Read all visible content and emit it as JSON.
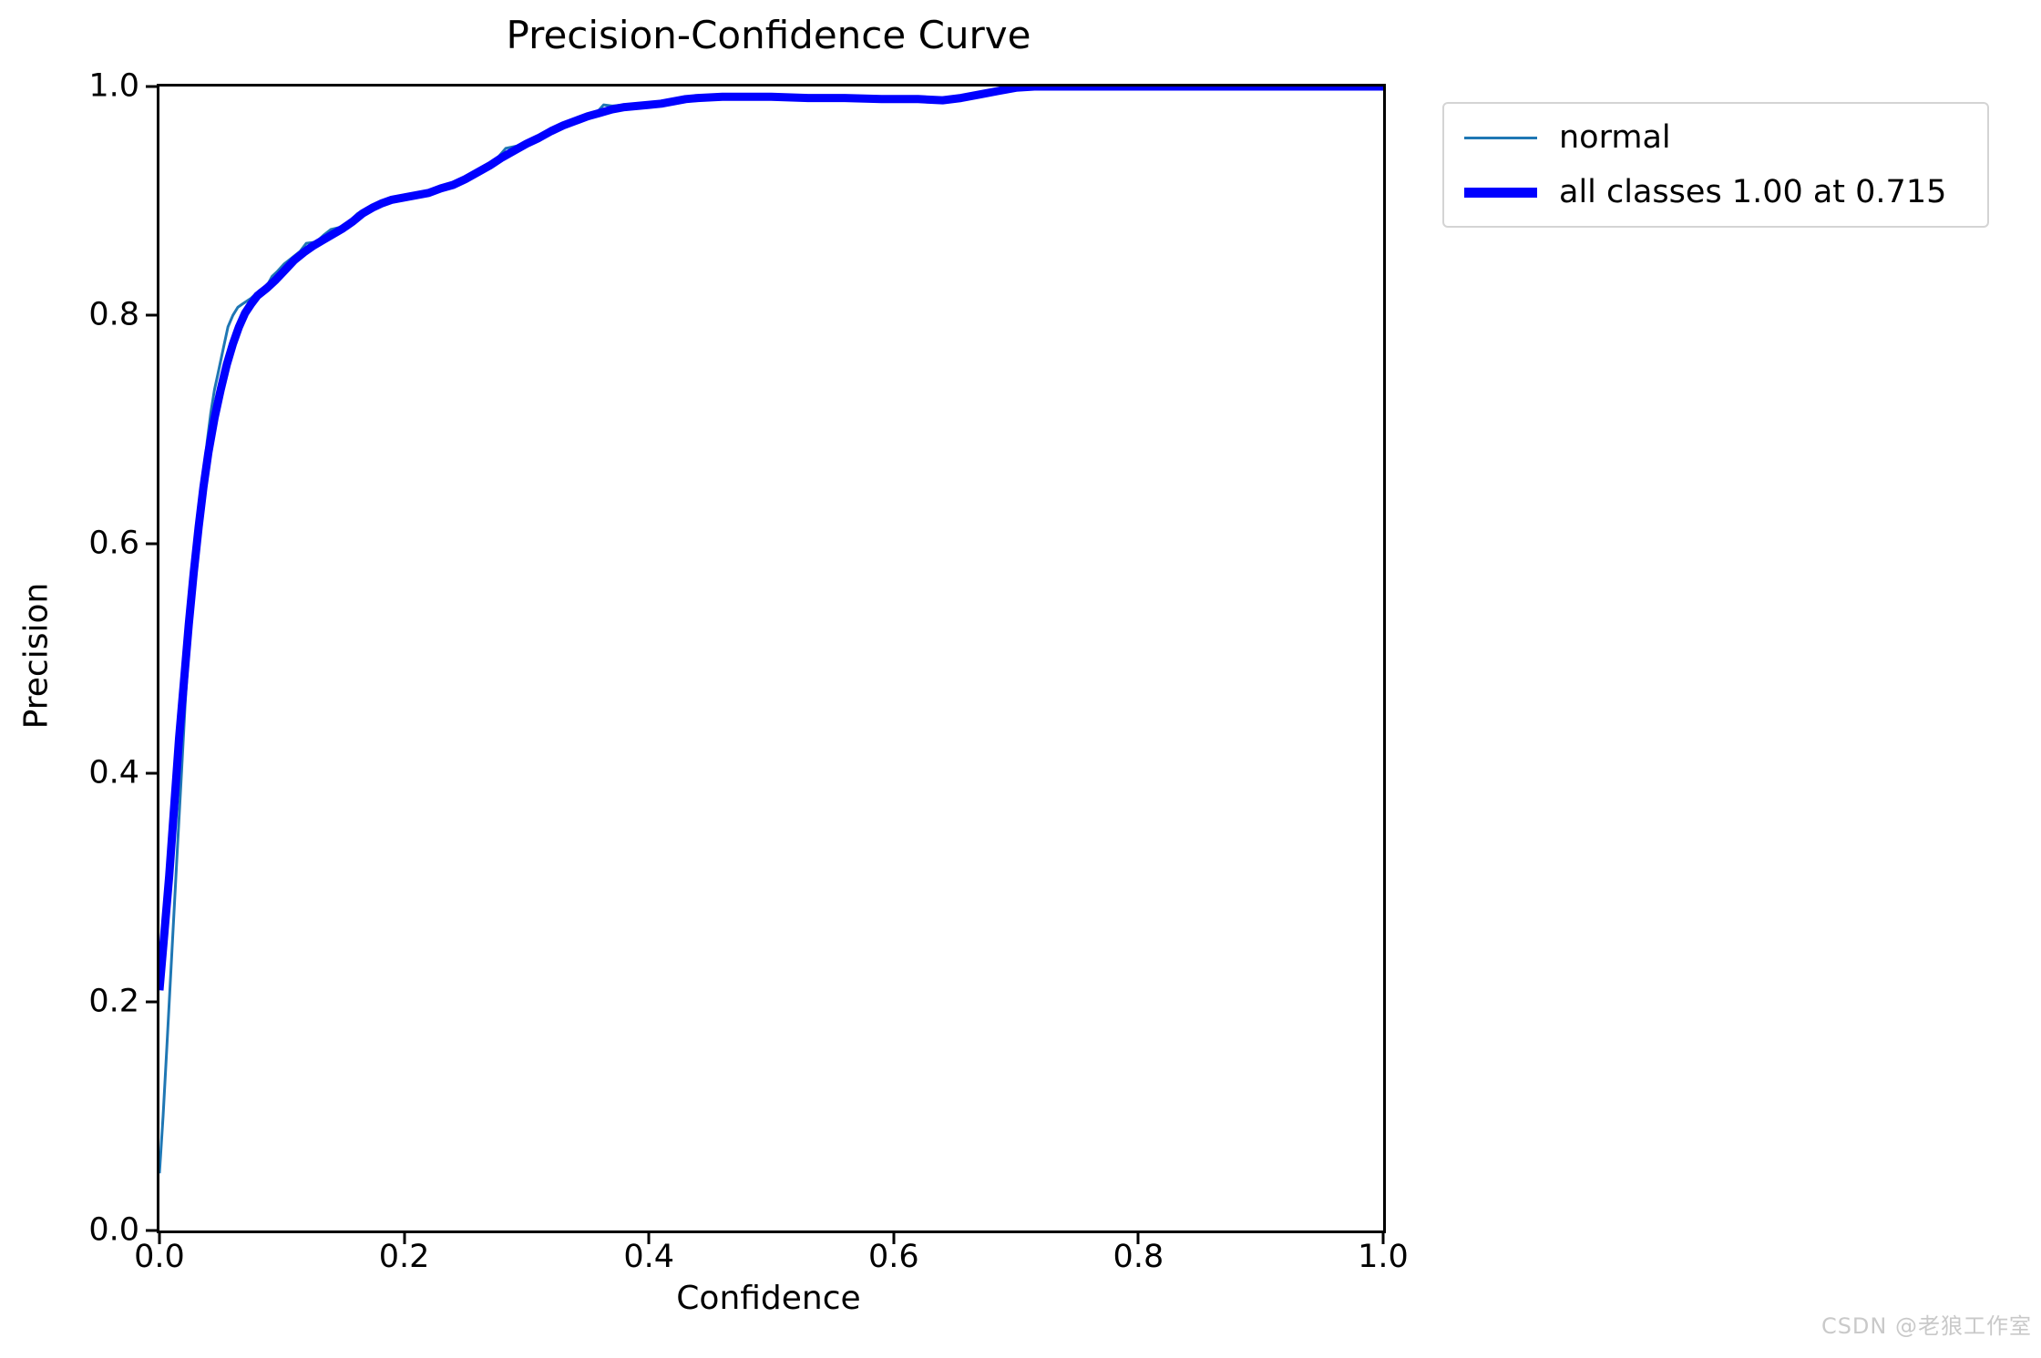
{
  "watermark": "CSDN @老狼工作室",
  "chart_data": {
    "type": "line",
    "title": "Precision-Confidence Curve",
    "xlabel": "Confidence",
    "ylabel": "Precision",
    "xlim": [
      0.0,
      1.0
    ],
    "ylim": [
      0.0,
      1.0
    ],
    "grid": false,
    "x_ticks": [
      "0.0",
      "0.2",
      "0.4",
      "0.6",
      "0.8",
      "1.0"
    ],
    "y_ticks": [
      "1.0",
      "0.8",
      "0.6",
      "0.4",
      "0.2",
      "0.0"
    ],
    "legend": {
      "position": "upper right outside",
      "entries": [
        {
          "label": "normal",
          "color": "#1f77b4",
          "linewidth": 3
        },
        {
          "label": "all classes 1.00 at 0.715",
          "color": "#0000ff",
          "linewidth": 11
        }
      ]
    },
    "series": [
      {
        "name": "normal",
        "color": "#1f77b4",
        "width": 3,
        "points": [
          [
            0.0,
            0.05
          ],
          [
            0.003,
            0.1
          ],
          [
            0.006,
            0.16
          ],
          [
            0.009,
            0.22
          ],
          [
            0.012,
            0.28
          ],
          [
            0.015,
            0.34
          ],
          [
            0.018,
            0.4
          ],
          [
            0.021,
            0.46
          ],
          [
            0.024,
            0.51
          ],
          [
            0.027,
            0.56
          ],
          [
            0.03,
            0.6
          ],
          [
            0.033,
            0.635
          ],
          [
            0.036,
            0.66
          ],
          [
            0.039,
            0.69
          ],
          [
            0.042,
            0.715
          ],
          [
            0.045,
            0.735
          ],
          [
            0.048,
            0.75
          ],
          [
            0.052,
            0.77
          ],
          [
            0.056,
            0.79
          ],
          [
            0.06,
            0.8
          ],
          [
            0.064,
            0.807
          ],
          [
            0.068,
            0.81
          ],
          [
            0.075,
            0.815
          ],
          [
            0.082,
            0.822
          ],
          [
            0.088,
            0.826
          ],
          [
            0.092,
            0.834
          ],
          [
            0.096,
            0.838
          ],
          [
            0.102,
            0.845
          ],
          [
            0.108,
            0.85
          ],
          [
            0.115,
            0.856
          ],
          [
            0.12,
            0.863
          ],
          [
            0.128,
            0.864
          ],
          [
            0.134,
            0.87
          ],
          [
            0.14,
            0.875
          ],
          [
            0.148,
            0.877
          ],
          [
            0.155,
            0.882
          ],
          [
            0.162,
            0.889
          ],
          [
            0.17,
            0.894
          ],
          [
            0.178,
            0.898
          ],
          [
            0.186,
            0.901
          ],
          [
            0.195,
            0.902
          ],
          [
            0.205,
            0.904
          ],
          [
            0.215,
            0.906
          ],
          [
            0.225,
            0.91
          ],
          [
            0.235,
            0.914
          ],
          [
            0.245,
            0.918
          ],
          [
            0.255,
            0.923
          ],
          [
            0.265,
            0.929
          ],
          [
            0.275,
            0.936
          ],
          [
            0.283,
            0.946
          ],
          [
            0.292,
            0.948
          ],
          [
            0.3,
            0.951
          ],
          [
            0.31,
            0.957
          ],
          [
            0.32,
            0.962
          ],
          [
            0.33,
            0.968
          ],
          [
            0.34,
            0.972
          ],
          [
            0.35,
            0.975
          ],
          [
            0.358,
            0.978
          ],
          [
            0.363,
            0.984
          ],
          [
            0.37,
            0.983
          ],
          [
            0.38,
            0.984
          ],
          [
            0.39,
            0.985
          ],
          [
            0.4,
            0.986
          ],
          [
            0.41,
            0.986
          ],
          [
            0.42,
            0.988
          ],
          [
            0.43,
            0.99
          ],
          [
            0.44,
            0.992
          ],
          [
            0.46,
            0.992
          ],
          [
            0.48,
            0.992
          ],
          [
            0.5,
            0.991
          ],
          [
            0.53,
            0.99
          ],
          [
            0.56,
            0.99
          ],
          [
            0.59,
            0.989
          ],
          [
            0.62,
            0.989
          ],
          [
            0.64,
            0.988
          ],
          [
            0.655,
            0.99
          ],
          [
            0.67,
            0.994
          ],
          [
            0.685,
            0.997
          ],
          [
            0.7,
            0.999
          ],
          [
            0.715,
            1.0
          ],
          [
            0.75,
            1.0
          ],
          [
            0.8,
            1.0
          ],
          [
            0.85,
            1.0
          ],
          [
            0.9,
            1.0
          ],
          [
            0.95,
            1.0
          ],
          [
            1.0,
            1.0
          ]
        ]
      },
      {
        "name": "all classes",
        "color": "#0000ff",
        "width": 9,
        "points": [
          [
            0.0,
            0.21
          ],
          [
            0.004,
            0.26
          ],
          [
            0.008,
            0.31
          ],
          [
            0.012,
            0.37
          ],
          [
            0.016,
            0.43
          ],
          [
            0.02,
            0.48
          ],
          [
            0.024,
            0.53
          ],
          [
            0.028,
            0.575
          ],
          [
            0.032,
            0.615
          ],
          [
            0.036,
            0.65
          ],
          [
            0.04,
            0.68
          ],
          [
            0.045,
            0.71
          ],
          [
            0.05,
            0.735
          ],
          [
            0.055,
            0.757
          ],
          [
            0.06,
            0.775
          ],
          [
            0.065,
            0.79
          ],
          [
            0.07,
            0.802
          ],
          [
            0.075,
            0.81
          ],
          [
            0.08,
            0.817
          ],
          [
            0.088,
            0.824
          ],
          [
            0.095,
            0.831
          ],
          [
            0.103,
            0.84
          ],
          [
            0.11,
            0.848
          ],
          [
            0.118,
            0.855
          ],
          [
            0.126,
            0.861
          ],
          [
            0.134,
            0.866
          ],
          [
            0.142,
            0.871
          ],
          [
            0.15,
            0.876
          ],
          [
            0.158,
            0.882
          ],
          [
            0.166,
            0.889
          ],
          [
            0.174,
            0.894
          ],
          [
            0.182,
            0.898
          ],
          [
            0.19,
            0.901
          ],
          [
            0.2,
            0.903
          ],
          [
            0.21,
            0.905
          ],
          [
            0.22,
            0.907
          ],
          [
            0.23,
            0.911
          ],
          [
            0.24,
            0.914
          ],
          [
            0.25,
            0.919
          ],
          [
            0.26,
            0.925
          ],
          [
            0.27,
            0.931
          ],
          [
            0.28,
            0.938
          ],
          [
            0.29,
            0.944
          ],
          [
            0.3,
            0.95
          ],
          [
            0.31,
            0.955
          ],
          [
            0.32,
            0.961
          ],
          [
            0.33,
            0.966
          ],
          [
            0.34,
            0.97
          ],
          [
            0.35,
            0.974
          ],
          [
            0.36,
            0.977
          ],
          [
            0.37,
            0.98
          ],
          [
            0.38,
            0.982
          ],
          [
            0.39,
            0.983
          ],
          [
            0.4,
            0.984
          ],
          [
            0.41,
            0.985
          ],
          [
            0.42,
            0.987
          ],
          [
            0.43,
            0.989
          ],
          [
            0.44,
            0.99
          ],
          [
            0.46,
            0.991
          ],
          [
            0.48,
            0.991
          ],
          [
            0.5,
            0.991
          ],
          [
            0.53,
            0.99
          ],
          [
            0.56,
            0.99
          ],
          [
            0.59,
            0.989
          ],
          [
            0.62,
            0.989
          ],
          [
            0.64,
            0.988
          ],
          [
            0.655,
            0.99
          ],
          [
            0.67,
            0.993
          ],
          [
            0.685,
            0.996
          ],
          [
            0.7,
            0.999
          ],
          [
            0.715,
            1.0
          ],
          [
            0.75,
            1.0
          ],
          [
            0.8,
            1.0
          ],
          [
            0.85,
            1.0
          ],
          [
            0.9,
            1.0
          ],
          [
            0.95,
            1.0
          ],
          [
            1.0,
            1.0
          ]
        ]
      }
    ]
  }
}
